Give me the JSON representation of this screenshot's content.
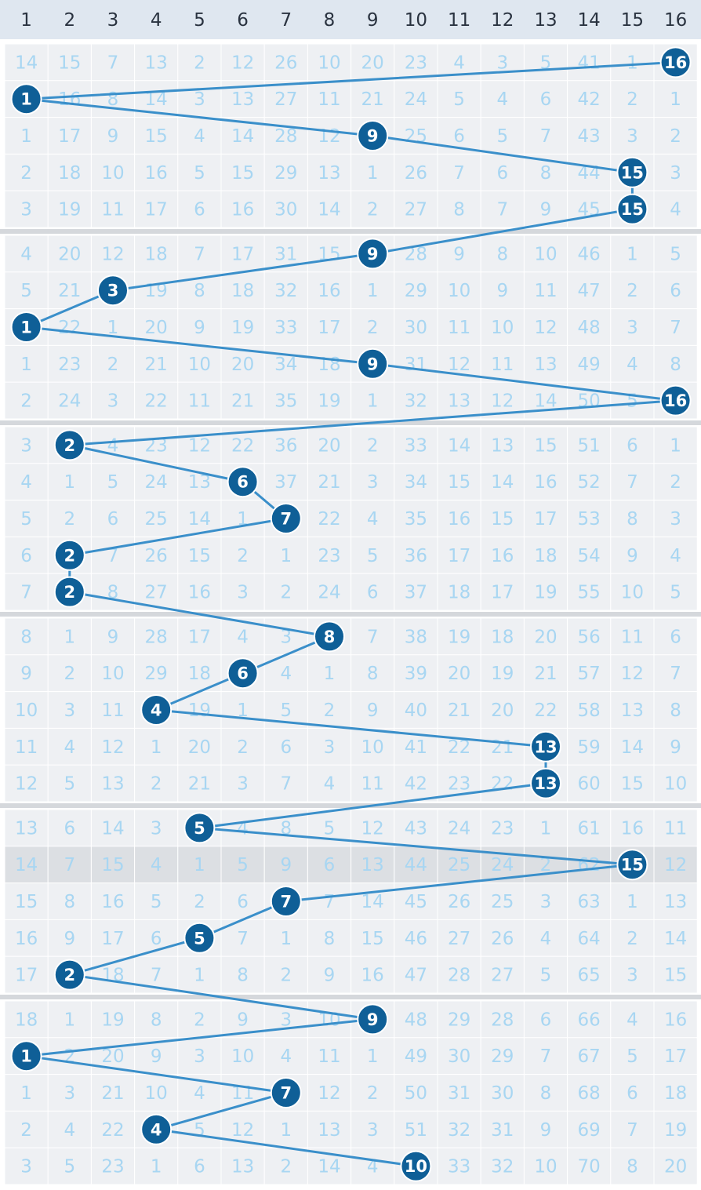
{
  "chart_data": {
    "type": "table",
    "columns": [
      "1",
      "2",
      "3",
      "4",
      "5",
      "6",
      "7",
      "8",
      "9",
      "10",
      "11",
      "12",
      "13",
      "14",
      "15",
      "16"
    ],
    "draws": [
      16,
      1,
      9,
      15,
      15,
      9,
      3,
      1,
      9,
      16,
      2,
      6,
      7,
      2,
      2,
      8,
      6,
      4,
      13,
      13,
      5,
      15,
      7,
      5,
      2,
      9,
      1,
      7,
      4,
      10
    ],
    "highlight_row": 21,
    "rows": [
      [
        "14",
        "15",
        "7",
        "13",
        "2",
        "12",
        "26",
        "10",
        "20",
        "23",
        "4",
        "3",
        "5",
        "41",
        "1",
        "16"
      ],
      [
        "1",
        "16",
        "8",
        "14",
        "3",
        "13",
        "27",
        "11",
        "21",
        "24",
        "5",
        "4",
        "6",
        "42",
        "2",
        "1"
      ],
      [
        "1",
        "17",
        "9",
        "15",
        "4",
        "14",
        "28",
        "12",
        "9",
        "25",
        "6",
        "5",
        "7",
        "43",
        "3",
        "2"
      ],
      [
        "2",
        "18",
        "10",
        "16",
        "5",
        "15",
        "29",
        "13",
        "1",
        "26",
        "7",
        "6",
        "8",
        "44",
        "15",
        "3"
      ],
      [
        "3",
        "19",
        "11",
        "17",
        "6",
        "16",
        "30",
        "14",
        "2",
        "27",
        "8",
        "7",
        "9",
        "45",
        "15",
        "4"
      ],
      [
        "4",
        "20",
        "12",
        "18",
        "7",
        "17",
        "31",
        "15",
        "9",
        "28",
        "9",
        "8",
        "10",
        "46",
        "1",
        "5"
      ],
      [
        "5",
        "21",
        "3",
        "19",
        "8",
        "18",
        "32",
        "16",
        "1",
        "29",
        "10",
        "9",
        "11",
        "47",
        "2",
        "6"
      ],
      [
        "1",
        "22",
        "1",
        "20",
        "9",
        "19",
        "33",
        "17",
        "2",
        "30",
        "11",
        "10",
        "12",
        "48",
        "3",
        "7"
      ],
      [
        "1",
        "23",
        "2",
        "21",
        "10",
        "20",
        "34",
        "18",
        "9",
        "31",
        "12",
        "11",
        "13",
        "49",
        "4",
        "8"
      ],
      [
        "2",
        "24",
        "3",
        "22",
        "11",
        "21",
        "35",
        "19",
        "1",
        "32",
        "13",
        "12",
        "14",
        "50",
        "5",
        "16"
      ],
      [
        "3",
        "2",
        "4",
        "23",
        "12",
        "22",
        "36",
        "20",
        "2",
        "33",
        "14",
        "13",
        "15",
        "51",
        "6",
        "1"
      ],
      [
        "4",
        "1",
        "5",
        "24",
        "13",
        "6",
        "37",
        "21",
        "3",
        "34",
        "15",
        "14",
        "16",
        "52",
        "7",
        "2"
      ],
      [
        "5",
        "2",
        "6",
        "25",
        "14",
        "1",
        "7",
        "22",
        "4",
        "35",
        "16",
        "15",
        "17",
        "53",
        "8",
        "3"
      ],
      [
        "6",
        "2",
        "7",
        "26",
        "15",
        "2",
        "1",
        "23",
        "5",
        "36",
        "17",
        "16",
        "18",
        "54",
        "9",
        "4"
      ],
      [
        "7",
        "2",
        "8",
        "27",
        "16",
        "3",
        "2",
        "24",
        "6",
        "37",
        "18",
        "17",
        "19",
        "55",
        "10",
        "5"
      ],
      [
        "8",
        "1",
        "9",
        "28",
        "17",
        "4",
        "3",
        "8",
        "7",
        "38",
        "19",
        "18",
        "20",
        "56",
        "11",
        "6"
      ],
      [
        "9",
        "2",
        "10",
        "29",
        "18",
        "6",
        "4",
        "1",
        "8",
        "39",
        "20",
        "19",
        "21",
        "57",
        "12",
        "7"
      ],
      [
        "10",
        "3",
        "11",
        "4",
        "19",
        "1",
        "5",
        "2",
        "9",
        "40",
        "21",
        "20",
        "22",
        "58",
        "13",
        "8"
      ],
      [
        "11",
        "4",
        "12",
        "1",
        "20",
        "2",
        "6",
        "3",
        "10",
        "41",
        "22",
        "21",
        "13",
        "59",
        "14",
        "9"
      ],
      [
        "12",
        "5",
        "13",
        "2",
        "21",
        "3",
        "7",
        "4",
        "11",
        "42",
        "23",
        "22",
        "13",
        "60",
        "15",
        "10"
      ],
      [
        "13",
        "6",
        "14",
        "3",
        "5",
        "4",
        "8",
        "5",
        "12",
        "43",
        "24",
        "23",
        "1",
        "61",
        "16",
        "11"
      ],
      [
        "14",
        "7",
        "15",
        "4",
        "1",
        "5",
        "9",
        "6",
        "13",
        "44",
        "25",
        "24",
        "2",
        "62",
        "15",
        "12"
      ],
      [
        "15",
        "8",
        "16",
        "5",
        "2",
        "6",
        "7",
        "7",
        "14",
        "45",
        "26",
        "25",
        "3",
        "63",
        "1",
        "13"
      ],
      [
        "16",
        "9",
        "17",
        "6",
        "5",
        "7",
        "1",
        "8",
        "15",
        "46",
        "27",
        "26",
        "4",
        "64",
        "2",
        "14"
      ],
      [
        "17",
        "2",
        "18",
        "7",
        "1",
        "8",
        "2",
        "9",
        "16",
        "47",
        "28",
        "27",
        "5",
        "65",
        "3",
        "15"
      ],
      [
        "18",
        "1",
        "19",
        "8",
        "2",
        "9",
        "3",
        "10",
        "9",
        "48",
        "29",
        "28",
        "6",
        "66",
        "4",
        "16"
      ],
      [
        "1",
        "2",
        "20",
        "9",
        "3",
        "10",
        "4",
        "11",
        "1",
        "49",
        "30",
        "29",
        "7",
        "67",
        "5",
        "17"
      ],
      [
        "1",
        "3",
        "21",
        "10",
        "4",
        "11",
        "7",
        "12",
        "2",
        "50",
        "31",
        "30",
        "8",
        "68",
        "6",
        "18"
      ],
      [
        "2",
        "4",
        "22",
        "4",
        "5",
        "12",
        "1",
        "13",
        "3",
        "51",
        "32",
        "31",
        "9",
        "69",
        "7",
        "19"
      ],
      [
        "3",
        "5",
        "23",
        "1",
        "6",
        "13",
        "2",
        "14",
        "4",
        "10",
        "33",
        "32",
        "10",
        "70",
        "8",
        "20"
      ]
    ],
    "colors": {
      "header_bg": "#dfe7f0",
      "cell_bg": "#eef0f3",
      "highlight_bg": "#dcdfe3",
      "miss_text": "#a8d6f2",
      "ball": "#0f5f97",
      "line": "#3a8fca"
    }
  }
}
